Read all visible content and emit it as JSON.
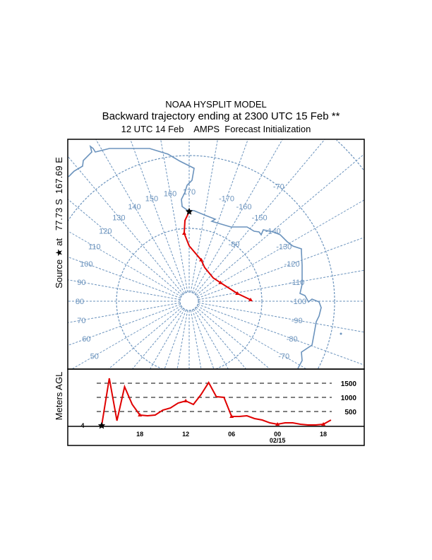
{
  "header": {
    "title": "NOAA HYSPLIT MODEL",
    "subtitle": "Backward trajectory ending at 2300 UTC 15 Feb **",
    "init": "12 UTC 14 Feb    AMPS  Forecast Initialization"
  },
  "source_label": "Source ★ at   77.73 S  167.69 E",
  "colors": {
    "grid": "#6b93bd",
    "trajectory": "#e00000",
    "frame": "#000000"
  },
  "chart_data": [
    {
      "type": "map-trajectory",
      "projection": "polar stereographic (south pole)",
      "longitude_labels": [
        "50",
        "60",
        "70",
        "80",
        "90",
        "100",
        "110",
        "120",
        "130",
        "140",
        "150",
        "160",
        "170",
        "-170",
        "-160",
        "-150",
        "-140",
        "-130",
        "-120",
        "-110",
        "-100",
        "-90",
        "-80",
        "-70"
      ],
      "latitude_labels": [
        "-80",
        "-70"
      ],
      "source": {
        "lat": -77.73,
        "lon": 167.69
      },
      "trajectory": {
        "lat": [
          -77.7,
          -78.9,
          -80.65,
          -82.4,
          -84.1,
          -84.9,
          -85.4,
          -85.0,
          -83.3,
          -81.55
        ],
        "lon": [
          170,
          167,
          165.8,
          170,
          -173.7,
          -165.4,
          -144.1,
          -130.6,
          -109.2,
          -101.3
        ],
        "markers": [
          2,
          4,
          7,
          8,
          9
        ]
      }
    },
    {
      "type": "line",
      "ylabel": "Meters AGL",
      "source_height_label": "4",
      "yticks": [
        "500",
        "1000",
        "1500"
      ],
      "ytick_values": [
        500,
        1000,
        1500
      ],
      "ylim": [
        0,
        1750
      ],
      "xticks": [
        "18",
        "12",
        "06",
        "00",
        "18"
      ],
      "xtick_hours": [
        5,
        11,
        17,
        23,
        29
      ],
      "date_label": "02/15",
      "hours": [
        0,
        1,
        2,
        3,
        4,
        5,
        6,
        7,
        8,
        9,
        10,
        11,
        12,
        13,
        14,
        15,
        16,
        17,
        18,
        19,
        20,
        21,
        22,
        23,
        24,
        25,
        26,
        27,
        28,
        29,
        30
      ],
      "height_m": [
        0,
        1675,
        175,
        1375,
        750,
        375,
        350,
        375,
        550,
        625,
        800,
        875,
        750,
        1100,
        1525,
        1025,
        1000,
        325,
        325,
        350,
        250,
        200,
        100,
        50,
        100,
        100,
        50,
        25,
        25,
        50,
        200
      ],
      "markers": [
        5,
        11,
        17,
        23,
        29
      ]
    }
  ]
}
